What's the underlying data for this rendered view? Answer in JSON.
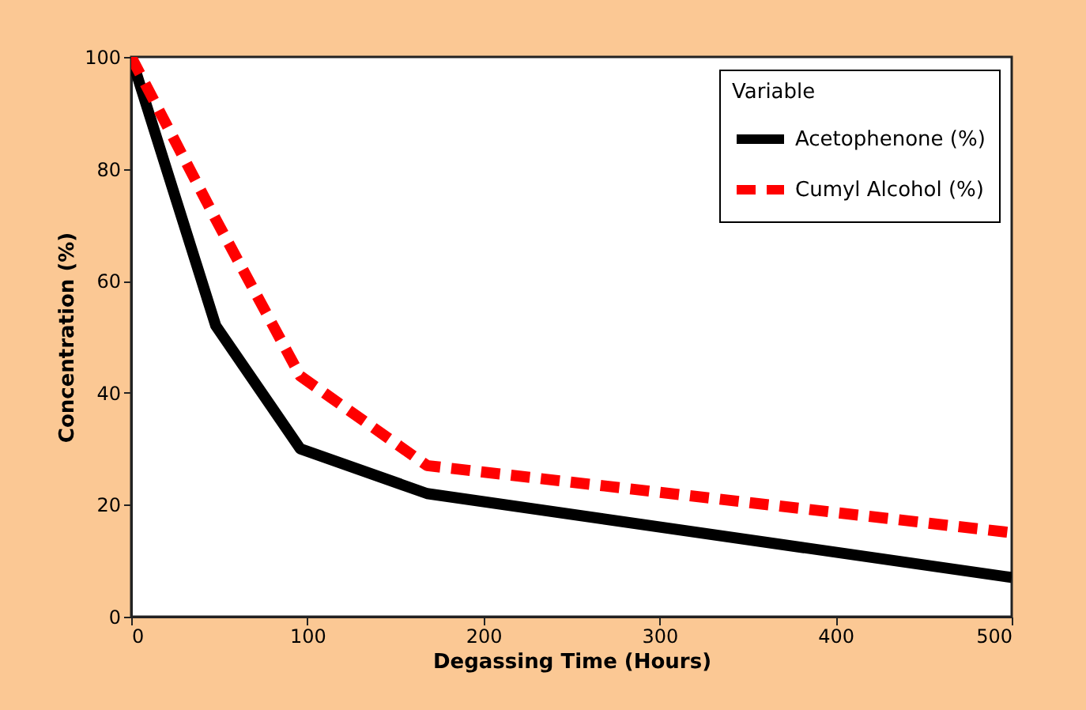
{
  "chart_data": {
    "type": "line",
    "xlabel": "Degassing Time (Hours)",
    "ylabel": "Concentration (%)",
    "legend_title": "Variable",
    "x": [
      0,
      48,
      96,
      168,
      500
    ],
    "series": [
      {
        "name": "Acetophenone (%)",
        "color": "#000000",
        "line_style": "solid",
        "values": [
          100,
          52,
          30,
          22,
          7
        ]
      },
      {
        "name": "Cumyl Alcohol (%)",
        "color": "#ff0000",
        "line_style": "dashed",
        "values": [
          100,
          71,
          43,
          27,
          15
        ]
      }
    ],
    "xlim": [
      0,
      500
    ],
    "xticks": [
      0,
      100,
      200,
      300,
      400,
      500
    ],
    "ylim": [
      0,
      100
    ],
    "yticks": [
      0,
      20,
      40,
      60,
      80,
      100
    ],
    "grid": false,
    "legend": "top right",
    "marker": "none"
  }
}
